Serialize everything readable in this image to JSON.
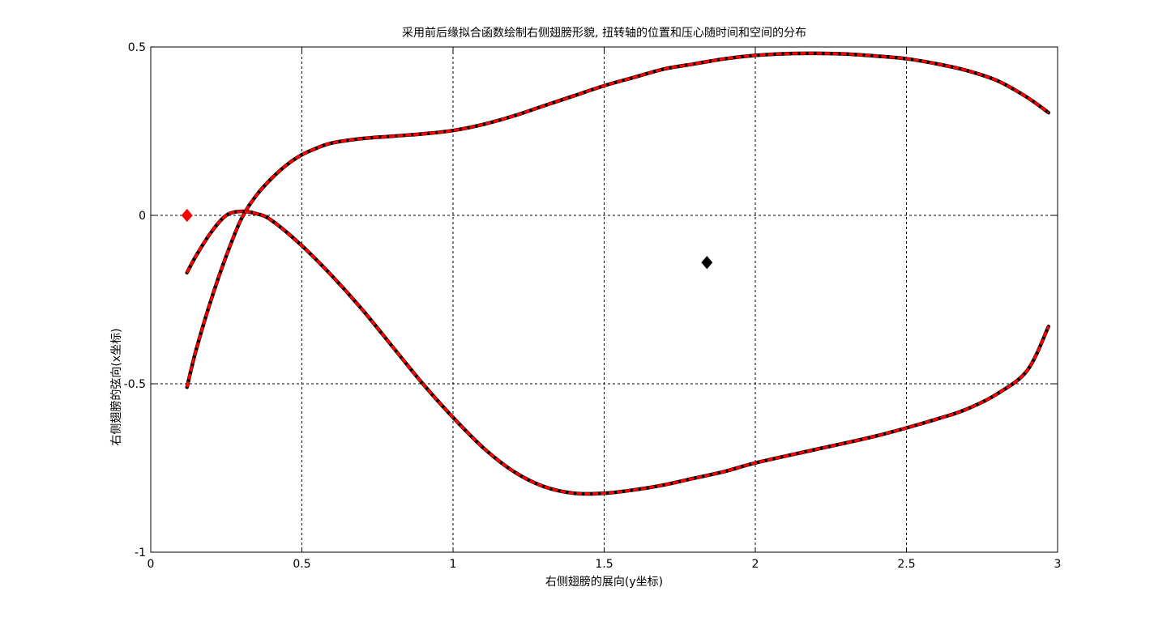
{
  "chart_data": {
    "type": "line",
    "title": "采用前后缘拟合函数绘制右侧翅膀形貌, 扭转轴的位置和压心随时间和空间的分布",
    "xlabel": "右侧翅膀的展向(y坐标)",
    "ylabel": "右侧翅膀的弦向(x坐标)",
    "xlim": [
      0,
      3
    ],
    "ylim": [
      -1,
      0.5
    ],
    "xticks": [
      0,
      0.5,
      1,
      1.5,
      2,
      2.5,
      3
    ],
    "yticks": [
      -1,
      -0.5,
      0,
      0.5
    ],
    "xtick_labels": [
      "0",
      "0.5",
      "1",
      "1.5",
      "2",
      "2.5",
      "3"
    ],
    "ytick_labels": [
      "-1",
      "-0.5",
      "0",
      "0.5"
    ],
    "grid": true,
    "series": [
      {
        "color_outer": "#000000",
        "color_inner": "#ff0000",
        "style": "black solid with red dashed overlay",
        "x": [
          0.12,
          0.15,
          0.2,
          0.25,
          0.3,
          0.35,
          0.4,
          0.45,
          0.5,
          0.55,
          0.6,
          0.7,
          0.8,
          0.9,
          1.0,
          1.1,
          1.2,
          1.3,
          1.4,
          1.5,
          1.6,
          1.7,
          1.8,
          1.9,
          2.0,
          2.1,
          2.2,
          2.3,
          2.4,
          2.5,
          2.6,
          2.7,
          2.8,
          2.9,
          2.97
        ],
        "y": [
          -0.51,
          -0.4,
          -0.25,
          -0.12,
          -0.01,
          0.06,
          0.11,
          0.15,
          0.18,
          0.2,
          0.215,
          0.228,
          0.235,
          0.242,
          0.252,
          0.27,
          0.295,
          0.325,
          0.355,
          0.385,
          0.41,
          0.435,
          0.45,
          0.465,
          0.475,
          0.48,
          0.481,
          0.479,
          0.473,
          0.465,
          0.45,
          0.43,
          0.4,
          0.35,
          0.305
        ]
      },
      {
        "color_outer": "#000000",
        "color_inner": "#ff0000",
        "style": "black solid with red dashed overlay",
        "x": [
          0.12,
          0.15,
          0.2,
          0.25,
          0.3,
          0.35,
          0.4,
          0.5,
          0.6,
          0.7,
          0.8,
          0.9,
          1.0,
          1.1,
          1.2,
          1.3,
          1.4,
          1.5,
          1.6,
          1.7,
          1.8,
          1.9,
          2.0,
          2.2,
          2.4,
          2.6,
          2.7,
          2.8,
          2.9,
          2.97
        ],
        "y": [
          -0.17,
          -0.12,
          -0.05,
          0.0,
          0.012,
          0.005,
          -0.015,
          -0.09,
          -0.18,
          -0.28,
          -0.39,
          -0.5,
          -0.6,
          -0.69,
          -0.76,
          -0.805,
          -0.825,
          -0.825,
          -0.815,
          -0.8,
          -0.78,
          -0.76,
          -0.735,
          -0.695,
          -0.655,
          -0.605,
          -0.575,
          -0.53,
          -0.46,
          -0.33
        ]
      }
    ],
    "markers": [
      {
        "x": 0.12,
        "y": 0.0,
        "shape": "diamond",
        "color": "#ff0000"
      },
      {
        "x": 1.84,
        "y": -0.14,
        "shape": "diamond",
        "color": "#000000"
      }
    ]
  }
}
